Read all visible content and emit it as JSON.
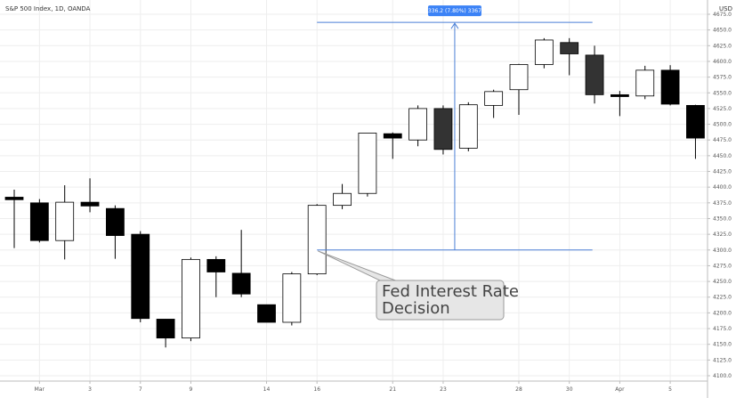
{
  "chart_data": {
    "type": "candlestick",
    "title": "S&P 500 Index, 1D, OANDA",
    "currency_label": "USD",
    "ylim": [
      4100,
      4675
    ],
    "y_ticks": [
      4100,
      4125,
      4150,
      4175,
      4200,
      4225,
      4250,
      4275,
      4300,
      4325,
      4350,
      4375,
      4400,
      4425,
      4450,
      4475,
      4500,
      4525,
      4550,
      4575,
      4600,
      4625,
      4650,
      4675
    ],
    "x_tick_labels": [
      {
        "label": "Mar",
        "index": 1
      },
      {
        "label": "3",
        "index": 3
      },
      {
        "label": "7",
        "index": 5
      },
      {
        "label": "9",
        "index": 7
      },
      {
        "label": "14",
        "index": 10
      },
      {
        "label": "16",
        "index": 12
      },
      {
        "label": "21",
        "index": 15
      },
      {
        "label": "23",
        "index": 17
      },
      {
        "label": "28",
        "index": 20
      },
      {
        "label": "30",
        "index": 22
      },
      {
        "label": "Apr",
        "index": 24
      },
      {
        "label": "5",
        "index": 26
      }
    ],
    "candles": [
      {
        "o": 4384,
        "h": 4396,
        "l": 4303,
        "c": 4380,
        "color": "black"
      },
      {
        "o": 4375,
        "h": 4381,
        "l": 4312,
        "c": 4315,
        "color": "black"
      },
      {
        "o": 4315,
        "h": 4403,
        "l": 4285,
        "c": 4376,
        "color": "white"
      },
      {
        "o": 4376,
        "h": 4414,
        "l": 4360,
        "c": 4370,
        "color": "black"
      },
      {
        "o": 4366,
        "h": 4371,
        "l": 4286,
        "c": 4323,
        "color": "black"
      },
      {
        "o": 4325,
        "h": 4330,
        "l": 4185,
        "c": 4191,
        "color": "black"
      },
      {
        "o": 4190,
        "h": 4190,
        "l": 4145,
        "c": 4160,
        "color": "black"
      },
      {
        "o": 4160,
        "h": 4288,
        "l": 4155,
        "c": 4285,
        "color": "white"
      },
      {
        "o": 4285,
        "h": 4290,
        "l": 4225,
        "c": 4265,
        "color": "black"
      },
      {
        "o": 4263,
        "h": 4332,
        "l": 4225,
        "c": 4230,
        "color": "black"
      },
      {
        "o": 4213,
        "h": 4213,
        "l": 4185,
        "c": 4185,
        "color": "black"
      },
      {
        "o": 4185,
        "h": 4265,
        "l": 4180,
        "c": 4262,
        "color": "white"
      },
      {
        "o": 4262,
        "h": 4373,
        "l": 4260,
        "c": 4371,
        "color": "white"
      },
      {
        "o": 4371,
        "h": 4405,
        "l": 4365,
        "c": 4390,
        "color": "white"
      },
      {
        "o": 4390,
        "h": 4485,
        "l": 4385,
        "c": 4486,
        "color": "white"
      },
      {
        "o": 4485,
        "h": 4487,
        "l": 4445,
        "c": 4478,
        "color": "black"
      },
      {
        "o": 4475,
        "h": 4530,
        "l": 4465,
        "c": 4525,
        "color": "white"
      },
      {
        "o": 4525,
        "h": 4530,
        "l": 4452,
        "c": 4460,
        "color": "dark"
      },
      {
        "o": 4462,
        "h": 4535,
        "l": 4457,
        "c": 4531,
        "color": "white"
      },
      {
        "o": 4530,
        "h": 4555,
        "l": 4510,
        "c": 4552,
        "color": "white"
      },
      {
        "o": 4555,
        "h": 4596,
        "l": 4515,
        "c": 4595,
        "color": "white"
      },
      {
        "o": 4595,
        "h": 4637,
        "l": 4589,
        "c": 4634,
        "color": "white"
      },
      {
        "o": 4630,
        "h": 4637,
        "l": 4578,
        "c": 4612,
        "color": "dark"
      },
      {
        "o": 4610,
        "h": 4625,
        "l": 4533,
        "c": 4547,
        "color": "dark"
      },
      {
        "o": 4547,
        "h": 4553,
        "l": 4513,
        "c": 4544,
        "color": "black"
      },
      {
        "o": 4545,
        "h": 4593,
        "l": 4540,
        "c": 4586,
        "color": "white"
      },
      {
        "o": 4586,
        "h": 4594,
        "l": 4530,
        "c": 4532,
        "color": "black"
      },
      {
        "o": 4530,
        "h": 4531,
        "l": 4445,
        "c": 4478,
        "color": "black"
      }
    ],
    "measure": {
      "from_index": 12,
      "to_index": 22,
      "low": 4300,
      "high": 4662,
      "label": "336.2 (7.80%) 3367"
    },
    "callout": {
      "lines": [
        "Fed Interest Rate",
        "Decision"
      ],
      "points_to_index": 12,
      "points_to_value": 4300
    }
  }
}
